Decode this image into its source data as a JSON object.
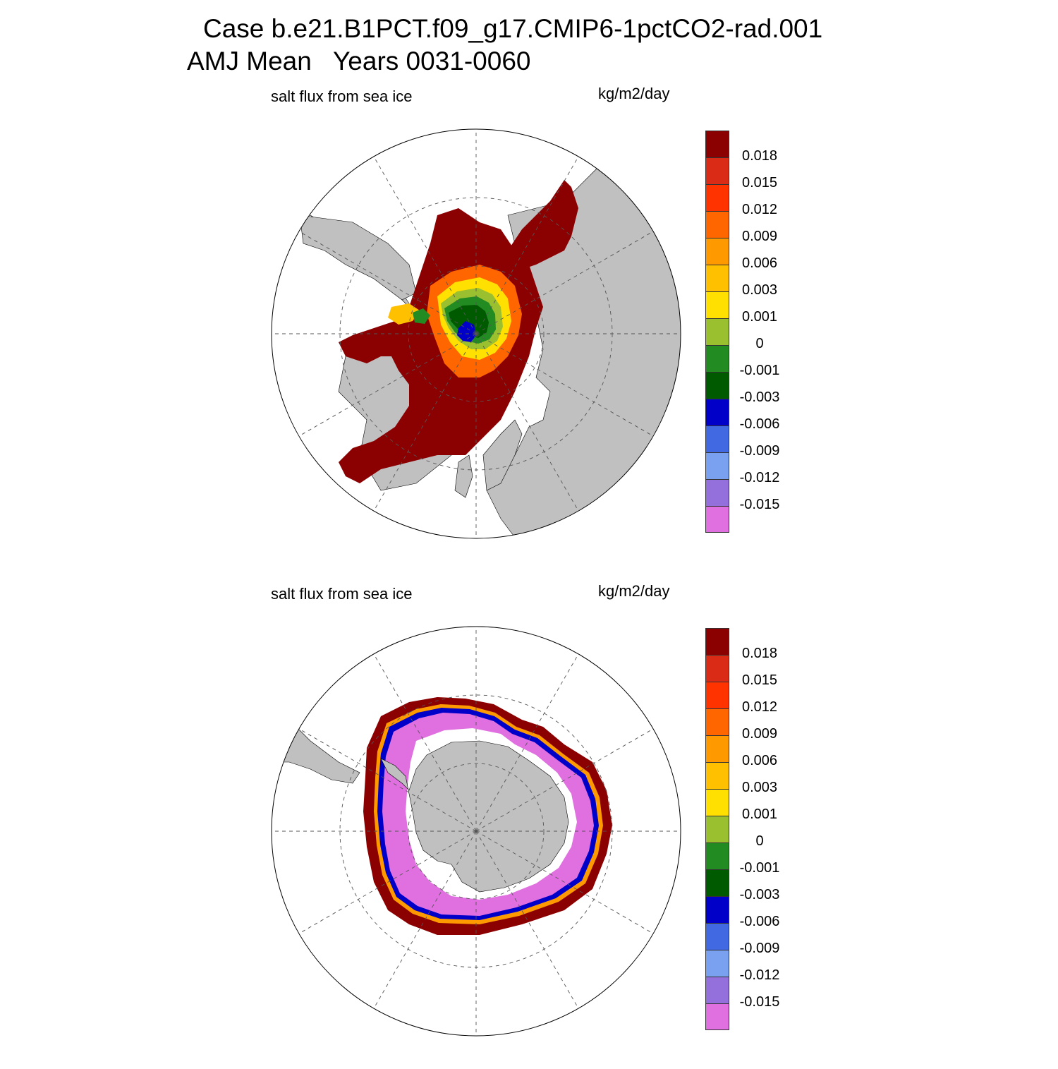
{
  "title_line1": "Case b.e21.B1PCT.f09_g17.CMIP6-1pctCO2-rad.001",
  "title_line2": "AMJ Mean   Years 0031-0060",
  "colors": {
    "land": "#c0c0c0",
    "grid": "#555555",
    "levels": [
      "#8b0000",
      "#d92b16",
      "#ff3300",
      "#ff6600",
      "#ff9900",
      "#ffc000",
      "#ffe000",
      "#9ac030",
      "#228b22",
      "#005a00",
      "#0000c8",
      "#4169e1",
      "#7aa0f0",
      "#9370db",
      "#e070e0"
    ]
  },
  "colorbar_labels": [
    "0.018",
    "0.015",
    "0.012",
    "0.009",
    "0.006",
    "0.003",
    "0.001",
    "0",
    "-0.001",
    "-0.003",
    "-0.006",
    "-0.009",
    "-0.012",
    "-0.015"
  ],
  "panels": [
    {
      "id": "nh",
      "hemisphere": "Arctic (north polar stereographic)",
      "left_title": "salt flux from sea ice",
      "right_title": "kg/m2/day"
    },
    {
      "id": "sh",
      "hemisphere": "Antarctic (south polar stereographic)",
      "left_title": "salt flux from sea ice",
      "right_title": "kg/m2/day"
    }
  ],
  "chart_data": [
    {
      "type": "heatmap",
      "title": "salt flux from sea ice",
      "units": "kg/m2/day",
      "projection": "north polar stereographic",
      "contour_levels": [
        -0.015,
        -0.012,
        -0.009,
        -0.006,
        -0.003,
        -0.001,
        0,
        0.001,
        0.003,
        0.006,
        0.009,
        0.012,
        0.015,
        0.018
      ],
      "grid": true
    },
    {
      "type": "heatmap",
      "title": "salt flux from sea ice",
      "units": "kg/m2/day",
      "projection": "south polar stereographic",
      "contour_levels": [
        -0.015,
        -0.012,
        -0.009,
        -0.006,
        -0.003,
        -0.001,
        0,
        0.001,
        0.003,
        0.006,
        0.009,
        0.012,
        0.015,
        0.018
      ],
      "grid": true
    }
  ]
}
